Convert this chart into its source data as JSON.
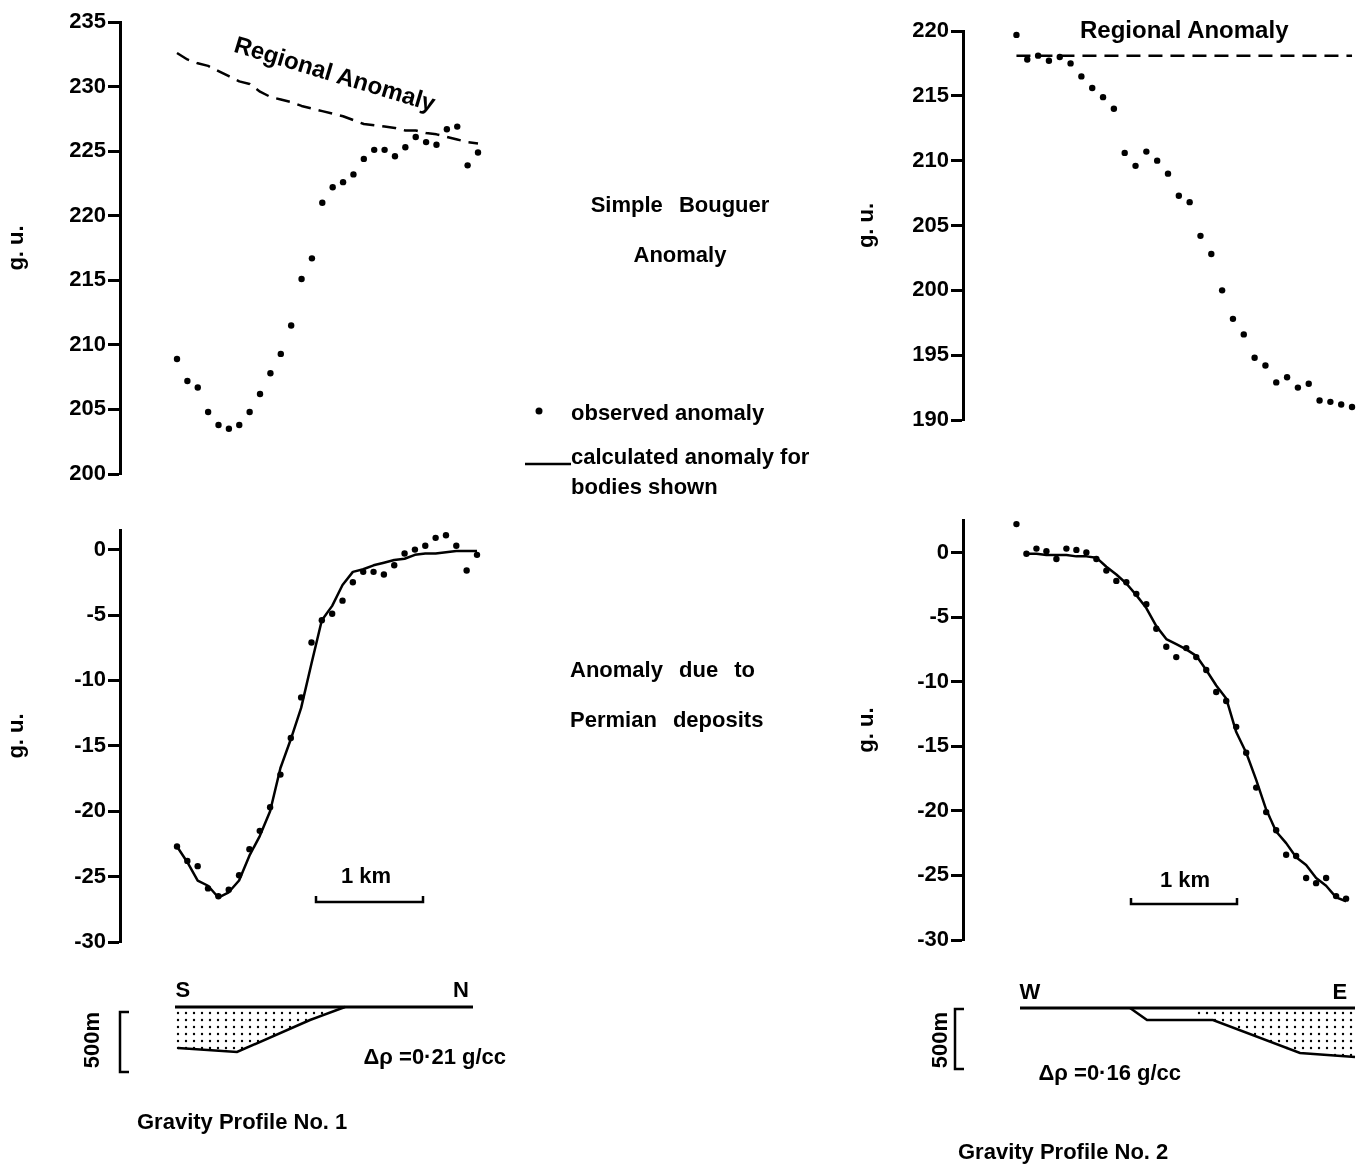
{
  "chart_data": [
    {
      "type": "scatter",
      "ylabel": "g. u.",
      "categories": [
        null,
        null,
        null,
        null,
        null,
        null,
        null,
        null,
        null,
        null,
        null,
        null,
        null,
        null,
        null,
        null,
        null,
        null,
        null,
        null,
        null,
        null,
        null,
        null,
        null,
        null,
        null,
        null,
        null,
        null
      ],
      "ylim": [
        200,
        235
      ],
      "yticks": [
        200,
        205,
        210,
        215,
        220,
        225,
        230,
        235
      ],
      "tick_labels": "y",
      "series": [
        {
          "type": "scatter",
          "color": "#000000",
          "marker": "circle",
          "values": [
            208.9,
            207.2,
            206.7,
            204.8,
            203.8,
            203.5,
            203.8,
            204.8,
            206.2,
            207.8,
            209.3,
            211.5,
            215.1,
            216.7,
            221.0,
            222.2,
            222.6,
            223.2,
            224.4,
            225.1,
            225.1,
            224.6,
            225.3,
            226.1,
            225.7,
            225.5,
            226.7,
            226.9,
            223.9,
            224.9
          ]
        },
        {
          "type": "line",
          "name": "Regional Anomaly",
          "color": "#000000",
          "marker": "none",
          "line_style": "dashed",
          "values": [
            232.6,
            232.1,
            231.8,
            231.6,
            231.2,
            230.8,
            230.4,
            230.2,
            229.6,
            229.2,
            229.0,
            228.8,
            228.5,
            228.3,
            228.1,
            227.9,
            227.7,
            227.4,
            227.1,
            227.0,
            226.9,
            226.8,
            226.6,
            226.6,
            226.4,
            226.3,
            226.1,
            225.9,
            225.7,
            225.6
          ]
        }
      ]
    },
    {
      "type": "scatter",
      "ylabel": "g. u.",
      "categories": [
        null,
        null,
        null,
        null,
        null,
        null,
        null,
        null,
        null,
        null,
        null,
        null,
        null,
        null,
        null,
        null,
        null,
        null,
        null,
        null,
        null,
        null,
        null,
        null,
        null,
        null,
        null,
        null,
        null,
        null
      ],
      "ylim": [
        -30,
        1.5
      ],
      "yticks": [
        -30,
        -25,
        -20,
        -15,
        -10,
        -5,
        0
      ],
      "tick_labels": "y",
      "legend": "right",
      "annotations": [
        "1 km",
        "S",
        "N",
        "500m",
        "Δρ =0·21 g/cc",
        "Gravity Profile No. 1"
      ],
      "series": [
        {
          "type": "scatter",
          "name": "observed anomaly",
          "color": "#000000",
          "marker": "circle",
          "values": [
            -22.7,
            -23.8,
            -24.2,
            -25.9,
            -26.5,
            -26.0,
            -24.9,
            -22.9,
            -21.5,
            -19.7,
            -17.2,
            -14.4,
            -11.3,
            -7.1,
            -5.4,
            -4.9,
            -3.9,
            -2.5,
            -1.7,
            -1.7,
            -1.9,
            -1.2,
            -0.3,
            0.0,
            0.3,
            0.9,
            1.1,
            0.3,
            -1.6,
            -0.4
          ]
        },
        {
          "type": "line",
          "name": "calculated anomaly for bodies shown",
          "color": "#000000",
          "marker": "none",
          "line_style": "solid",
          "values": [
            -22.7,
            -23.9,
            -25.3,
            -25.7,
            -26.6,
            -26.2,
            -25.3,
            -23.4,
            -21.9,
            -20.0,
            -16.7,
            -14.5,
            -12.1,
            -8.7,
            -5.4,
            -4.3,
            -2.7,
            -1.7,
            -1.5,
            -1.2,
            -1.0,
            -0.8,
            -0.7,
            -0.4,
            -0.3,
            -0.3,
            -0.2,
            -0.1,
            -0.1,
            -0.1
          ]
        }
      ]
    },
    {
      "type": "scatter",
      "ylabel": "g. u.",
      "categories": [
        null,
        null,
        null,
        null,
        null,
        null,
        null,
        null,
        null,
        null,
        null,
        null,
        null,
        null,
        null,
        null,
        null,
        null,
        null,
        null,
        null,
        null,
        null,
        null,
        null,
        null,
        null,
        null,
        null,
        null,
        null,
        null
      ],
      "ylim": [
        190,
        220
      ],
      "yticks": [
        190,
        195,
        200,
        205,
        210,
        215,
        220
      ],
      "tick_labels": "y",
      "series": [
        {
          "type": "scatter",
          "color": "#000000",
          "marker": "circle",
          "values": [
            219.7,
            217.8,
            218.1,
            217.7,
            218.0,
            217.5,
            216.5,
            215.6,
            214.9,
            214.0,
            210.6,
            209.6,
            210.7,
            210.0,
            209.0,
            207.3,
            206.8,
            204.2,
            202.8,
            200.0,
            197.8,
            196.6,
            194.8,
            194.2,
            192.9,
            193.3,
            192.5,
            192.8,
            191.5,
            191.4,
            191.2,
            191.0
          ]
        },
        {
          "type": "line",
          "name": "Regional Anomaly",
          "color": "#000000",
          "marker": "none",
          "line_style": "dashed",
          "values": [
            218.1,
            218.1,
            218.1,
            218.1,
            218.1,
            218.1,
            218.1,
            218.1,
            218.1,
            218.1,
            218.1,
            218.1,
            218.1,
            218.1,
            218.1,
            218.1,
            218.1,
            218.1,
            218.1,
            218.1,
            218.1,
            218.1,
            218.1,
            218.1,
            218.1,
            218.1,
            218.1,
            218.1,
            218.1,
            218.1,
            218.1,
            218.1
          ]
        }
      ]
    },
    {
      "type": "scatter",
      "ylabel": "g. u.",
      "categories": [
        null,
        null,
        null,
        null,
        null,
        null,
        null,
        null,
        null,
        null,
        null,
        null,
        null,
        null,
        null,
        null,
        null,
        null,
        null,
        null,
        null,
        null,
        null,
        null,
        null,
        null,
        null,
        null,
        null,
        null,
        null,
        null,
        null,
        null
      ],
      "ylim": [
        -30,
        2.5
      ],
      "yticks": [
        -30,
        -25,
        -20,
        -15,
        -10,
        -5,
        0
      ],
      "tick_labels": "y",
      "annotations": [
        "1 km",
        "W",
        "E",
        "500m",
        "Δρ =0·16 g/cc",
        "Gravity Profile No. 2"
      ],
      "series": [
        {
          "type": "scatter",
          "color": "#000000",
          "marker": "circle",
          "values": [
            2.2,
            -0.1,
            0.3,
            0.1,
            -0.5,
            0.3,
            0.2,
            0.0,
            -0.5,
            -1.4,
            -2.2,
            -2.3,
            -3.2,
            -4.0,
            -5.9,
            -7.3,
            -8.1,
            -7.4,
            -8.1,
            -9.1,
            -10.8,
            -11.5,
            -13.5,
            -15.5,
            -18.2,
            -20.1,
            -21.5,
            -23.4,
            -23.5,
            -25.2,
            -25.6,
            -25.2,
            -26.6,
            -26.8
          ]
        },
        {
          "type": "line",
          "color": "#000000",
          "marker": "none",
          "line_style": "solid",
          "values": [
            null,
            -0.1,
            -0.1,
            -0.2,
            -0.2,
            -0.2,
            -0.3,
            -0.3,
            -0.4,
            -1.1,
            -1.7,
            -2.4,
            -3.3,
            -4.3,
            -5.7,
            -6.7,
            -7.1,
            -7.5,
            -8.0,
            -9.1,
            -10.3,
            -11.3,
            -13.9,
            -15.5,
            -17.6,
            -19.9,
            -21.6,
            -22.5,
            -23.6,
            -24.2,
            -25.2,
            -25.8,
            -26.7,
            -27.0
          ]
        }
      ]
    },
    {
      "type": "other",
      "annotations": [
        "Simple Bouguer Anomaly",
        "Anomaly due to Permian deposits"
      ]
    }
  ]
}
